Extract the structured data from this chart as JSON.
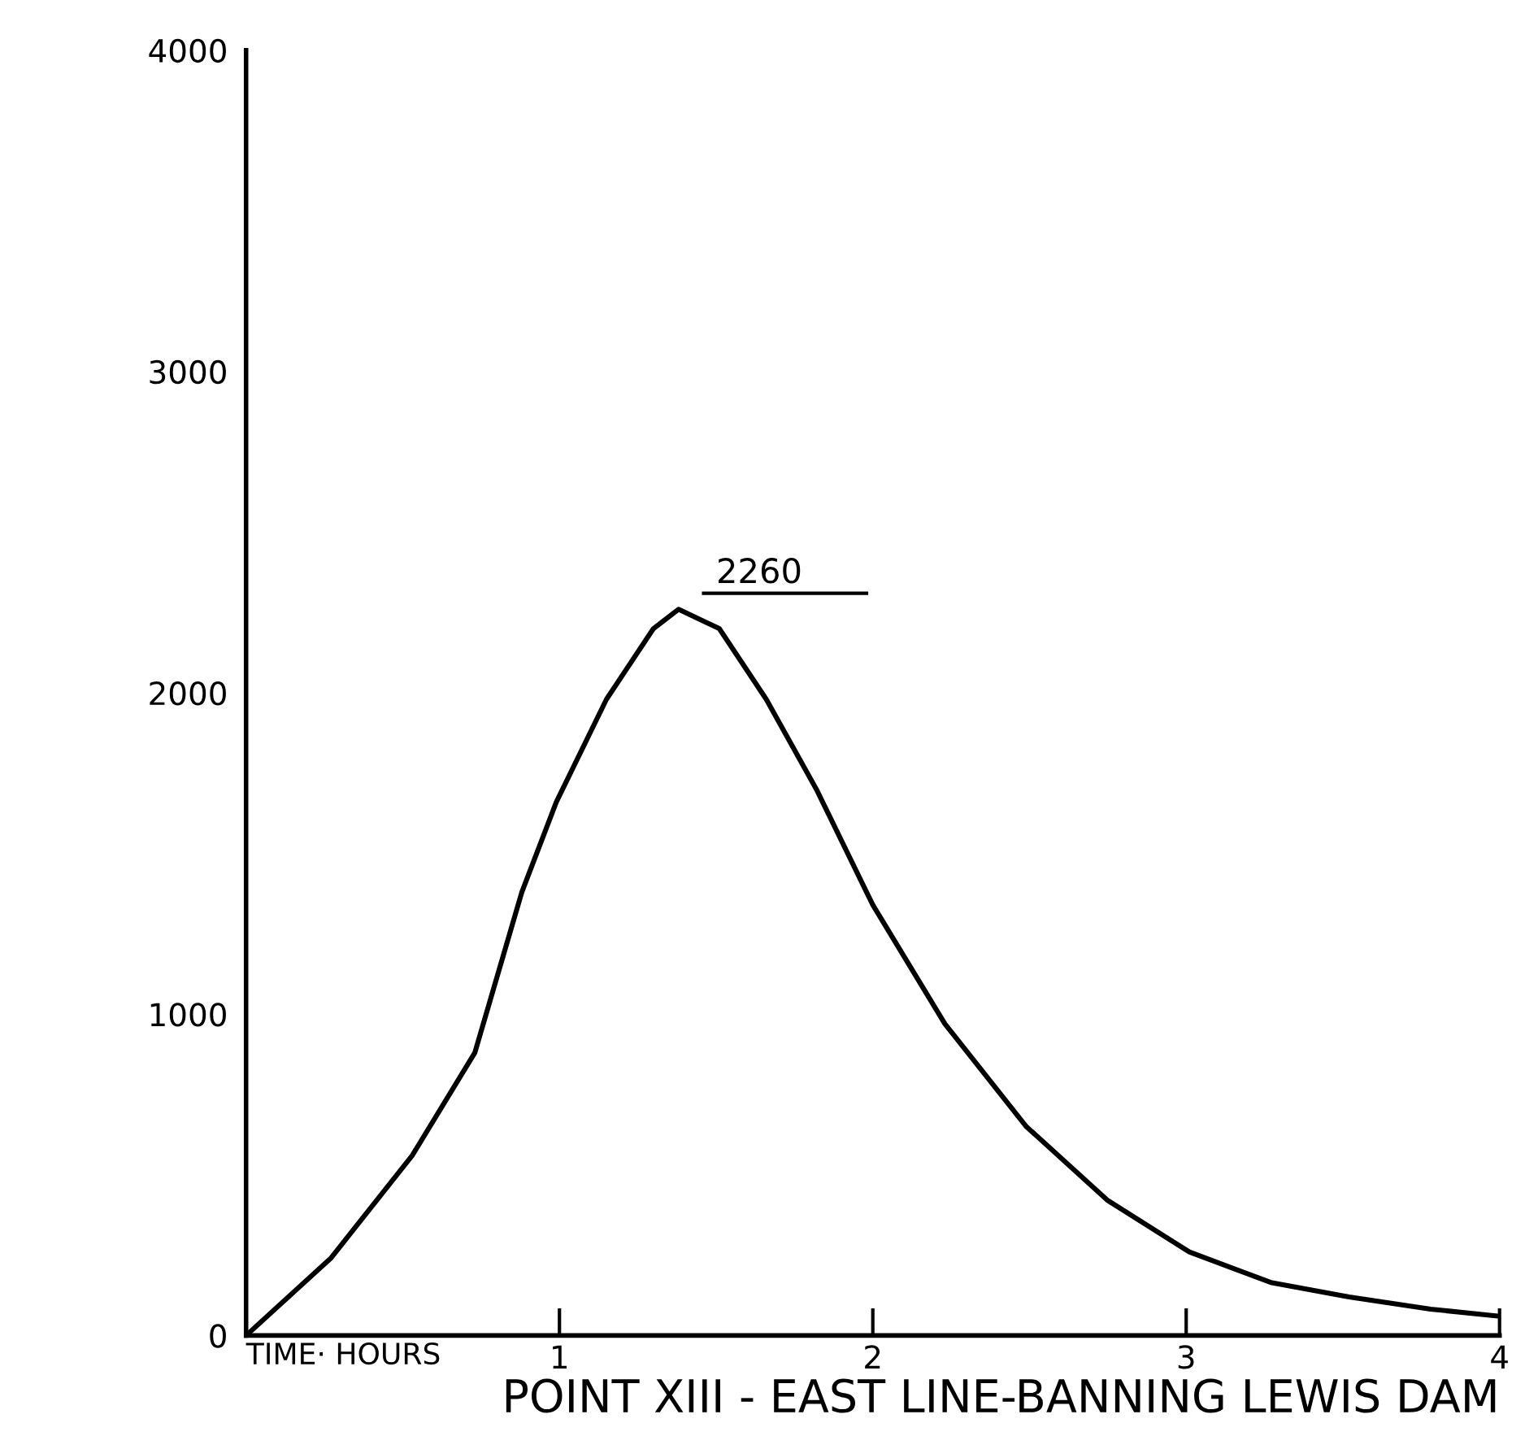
{
  "chart_data": {
    "type": "line",
    "title": "POINT XIII - EAST LINE-BANNING LEWIS DAM",
    "xlabel": "TIME· HOURS",
    "x": [
      0,
      0.27,
      0.53,
      0.73,
      0.88,
      0.99,
      1.15,
      1.3,
      1.38,
      1.51,
      1.66,
      1.82,
      2.0,
      2.23,
      2.49,
      2.75,
      3.01,
      3.27,
      3.52,
      3.78,
      4.0
    ],
    "series": [
      {
        "color": "#000000",
        "values": [
          0,
          240,
          560,
          880,
          1380,
          1660,
          1980,
          2200,
          2260,
          2200,
          1980,
          1700,
          1340,
          970,
          650,
          420,
          260,
          165,
          120,
          82,
          60
        ]
      }
    ],
    "annotations": [
      {
        "text": "2260",
        "x": 1.38,
        "y": 2260
      }
    ],
    "xlim": [
      0,
      4
    ],
    "xticks": [
      1,
      2,
      3,
      4
    ],
    "ylim": [
      0,
      4000
    ],
    "yticks": [
      0,
      1000,
      2000,
      3000,
      4000
    ],
    "grid": false,
    "marker": "none",
    "line_style": "solid"
  }
}
